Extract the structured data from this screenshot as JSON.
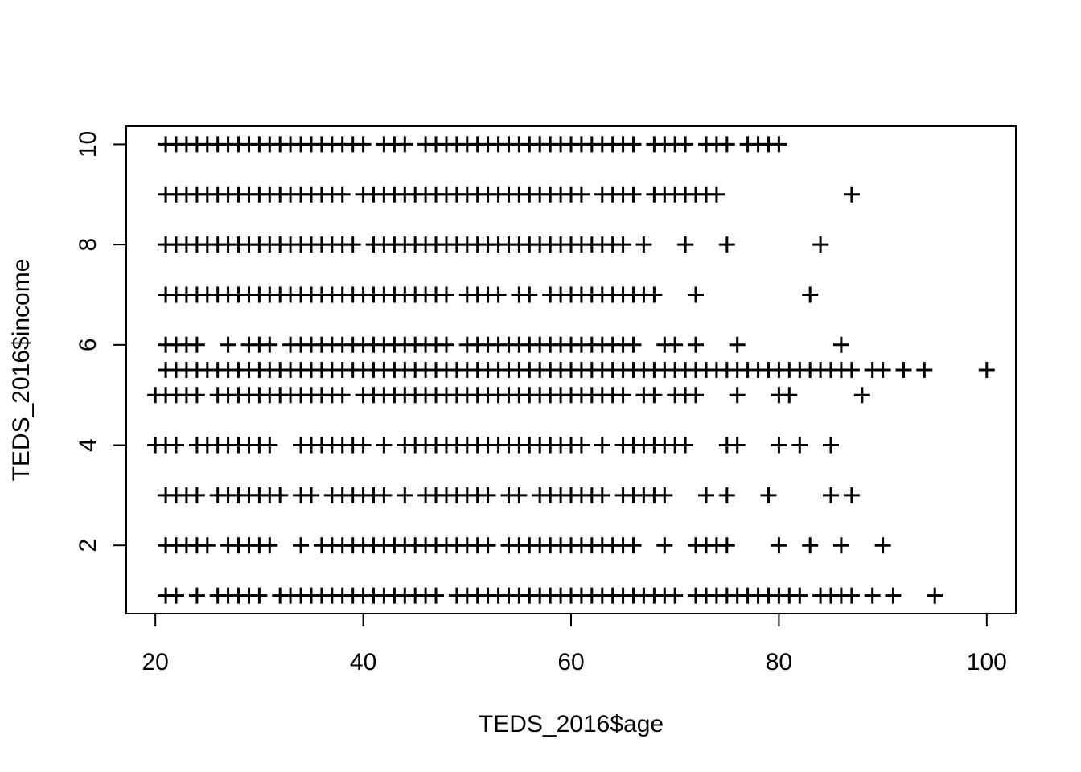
{
  "chart_data": {
    "type": "scatter",
    "title": "",
    "xlabel": "TEDS_2016$age",
    "ylabel": "TEDS_2016$income",
    "xlim": [
      17.2,
      102.8
    ],
    "ylim": [
      0.64,
      10.36
    ],
    "xticks": [
      20,
      40,
      60,
      80,
      100
    ],
    "yticks": [
      2,
      4,
      6,
      8,
      10
    ],
    "grid": false,
    "marker": "plus",
    "rows": [
      {
        "y": 10,
        "x": [
          21,
          22,
          23,
          24,
          25,
          26,
          27,
          28,
          29,
          30,
          31,
          32,
          33,
          34,
          35,
          36,
          37,
          38,
          39,
          40,
          42,
          43,
          44,
          46,
          47,
          48,
          49,
          50,
          51,
          52,
          53,
          54,
          55,
          56,
          57,
          58,
          59,
          60,
          61,
          62,
          63,
          64,
          65,
          66,
          68,
          69,
          70,
          71,
          73,
          74,
          75,
          77,
          78,
          79,
          80
        ]
      },
      {
        "y": 9,
        "x": [
          21,
          22,
          23,
          24,
          25,
          26,
          27,
          28,
          29,
          30,
          31,
          32,
          33,
          34,
          35,
          36,
          37,
          38,
          40,
          41,
          42,
          43,
          44,
          45,
          46,
          47,
          48,
          49,
          50,
          51,
          52,
          53,
          54,
          55,
          56,
          57,
          58,
          59,
          60,
          61,
          63,
          64,
          65,
          66,
          68,
          69,
          70,
          71,
          72,
          73,
          74,
          87
        ]
      },
      {
        "y": 8,
        "x": [
          21,
          22,
          23,
          24,
          25,
          26,
          27,
          28,
          29,
          30,
          31,
          32,
          33,
          34,
          35,
          36,
          37,
          38,
          39,
          41,
          42,
          43,
          44,
          45,
          46,
          47,
          48,
          49,
          50,
          51,
          52,
          53,
          54,
          55,
          56,
          57,
          58,
          59,
          60,
          61,
          62,
          63,
          64,
          65,
          67,
          71,
          75,
          84
        ]
      },
      {
        "y": 7,
        "x": [
          21,
          22,
          23,
          24,
          25,
          26,
          27,
          28,
          29,
          30,
          31,
          32,
          33,
          34,
          35,
          36,
          37,
          38,
          39,
          40,
          41,
          42,
          43,
          44,
          45,
          46,
          47,
          48,
          50,
          51,
          52,
          53,
          55,
          56,
          58,
          59,
          60,
          61,
          62,
          63,
          64,
          65,
          66,
          67,
          68,
          72,
          83
        ]
      },
      {
        "y": 6,
        "x": [
          21,
          22,
          23,
          24,
          27,
          29,
          30,
          31,
          33,
          34,
          35,
          36,
          37,
          38,
          39,
          40,
          41,
          42,
          43,
          44,
          45,
          46,
          47,
          48,
          50,
          51,
          52,
          53,
          54,
          55,
          56,
          57,
          58,
          59,
          60,
          61,
          62,
          63,
          64,
          65,
          66,
          69,
          70,
          72,
          76,
          86
        ]
      },
      {
        "y": 5.5,
        "x": [
          21,
          22,
          23,
          24,
          25,
          26,
          27,
          28,
          29,
          30,
          31,
          32,
          33,
          34,
          35,
          36,
          37,
          38,
          39,
          40,
          41,
          42,
          43,
          44,
          45,
          46,
          47,
          48,
          49,
          50,
          51,
          52,
          53,
          54,
          55,
          56,
          57,
          58,
          59,
          60,
          61,
          62,
          63,
          64,
          65,
          66,
          67,
          68,
          69,
          70,
          71,
          72,
          73,
          74,
          75,
          76,
          77,
          78,
          79,
          80,
          81,
          82,
          83,
          84,
          85,
          86,
          87,
          89,
          90,
          92,
          94,
          100
        ]
      },
      {
        "y": 5,
        "x": [
          20,
          21,
          22,
          23,
          24,
          26,
          27,
          28,
          29,
          30,
          31,
          32,
          33,
          34,
          35,
          36,
          37,
          38,
          40,
          41,
          42,
          43,
          44,
          45,
          46,
          47,
          48,
          49,
          50,
          51,
          52,
          53,
          54,
          55,
          56,
          57,
          58,
          59,
          60,
          61,
          62,
          63,
          64,
          65,
          67,
          68,
          70,
          71,
          72,
          76,
          80,
          81,
          88
        ]
      },
      {
        "y": 4,
        "x": [
          20,
          21,
          22,
          24,
          25,
          26,
          27,
          28,
          29,
          30,
          31,
          34,
          35,
          36,
          37,
          38,
          39,
          40,
          42,
          44,
          45,
          46,
          47,
          48,
          49,
          50,
          51,
          52,
          53,
          54,
          55,
          56,
          57,
          58,
          59,
          60,
          61,
          63,
          65,
          66,
          67,
          68,
          69,
          70,
          71,
          75,
          76,
          80,
          82,
          85
        ]
      },
      {
        "y": 3,
        "x": [
          21,
          22,
          23,
          24,
          26,
          27,
          28,
          29,
          30,
          31,
          32,
          34,
          35,
          37,
          38,
          39,
          40,
          41,
          42,
          44,
          46,
          47,
          48,
          49,
          50,
          51,
          52,
          54,
          55,
          57,
          58,
          59,
          60,
          61,
          62,
          63,
          65,
          66,
          67,
          68,
          69,
          73,
          75,
          79,
          85,
          87
        ]
      },
      {
        "y": 2,
        "x": [
          21,
          22,
          23,
          24,
          25,
          27,
          28,
          29,
          30,
          31,
          34,
          36,
          37,
          38,
          39,
          40,
          41,
          42,
          43,
          44,
          45,
          46,
          47,
          48,
          49,
          50,
          51,
          52,
          54,
          55,
          56,
          57,
          58,
          59,
          60,
          61,
          62,
          63,
          64,
          65,
          66,
          69,
          72,
          73,
          74,
          75,
          80,
          83,
          86,
          90
        ]
      },
      {
        "y": 1,
        "x": [
          21,
          22,
          24,
          26,
          27,
          28,
          29,
          30,
          32,
          33,
          34,
          35,
          36,
          37,
          38,
          39,
          40,
          41,
          42,
          43,
          44,
          45,
          46,
          47,
          49,
          50,
          51,
          52,
          53,
          54,
          55,
          56,
          57,
          58,
          59,
          60,
          61,
          62,
          63,
          64,
          65,
          66,
          67,
          68,
          69,
          70,
          72,
          73,
          74,
          75,
          76,
          77,
          78,
          79,
          80,
          81,
          82,
          84,
          85,
          86,
          87,
          89,
          91,
          95
        ]
      }
    ]
  }
}
